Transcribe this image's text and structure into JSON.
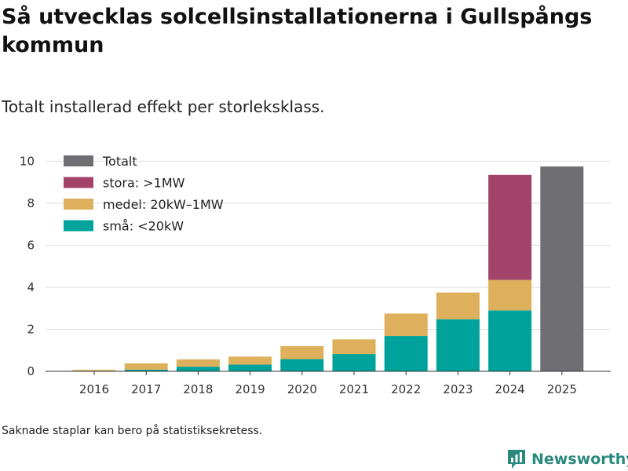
{
  "header": {
    "title": "Så utvecklas solcellsinstallationerna i Gullspångs kommun",
    "subtitle": "Totalt installerad effekt per storleksklass."
  },
  "footer": {
    "note": "Saknade staplar kan bero på statistiksekretess.",
    "brand": "Newsworthy"
  },
  "colors": {
    "sma": "#00a39b",
    "medel": "#deb05b",
    "stora": "#a4436a",
    "totalt": "#6f6f73",
    "grid": "#dddddd",
    "brand": "#2b8a7e"
  },
  "chart_data": {
    "type": "bar",
    "stacked": true,
    "title": "Så utvecklas solcellsinstallationerna i Gullspångs kommun",
    "subtitle": "Totalt installerad effekt per storleksklass.",
    "xlabel": "",
    "ylabel": "",
    "ylim": [
      0,
      10.5
    ],
    "yticks": [
      0,
      2,
      4,
      6,
      8,
      10
    ],
    "grid": true,
    "legend_position": "top-left",
    "categories": [
      "2016",
      "2017",
      "2018",
      "2019",
      "2020",
      "2021",
      "2022",
      "2023",
      "2024",
      "2025"
    ],
    "series": [
      {
        "name": "små: <20kW",
        "key": "sma",
        "values": [
          0.02,
          0.08,
          0.22,
          0.32,
          0.58,
          0.82,
          1.68,
          2.48,
          2.9,
          null
        ]
      },
      {
        "name": "medel: 20kW–1MW",
        "key": "medel",
        "values": [
          0.05,
          0.3,
          0.35,
          0.38,
          0.62,
          0.7,
          1.07,
          1.27,
          1.45,
          null
        ]
      },
      {
        "name": "stora: >1MW",
        "key": "stora",
        "values": [
          null,
          null,
          null,
          null,
          null,
          null,
          null,
          null,
          5.0,
          null
        ]
      },
      {
        "name": "Totalt",
        "key": "totalt",
        "values": [
          null,
          null,
          null,
          null,
          null,
          null,
          null,
          null,
          null,
          9.75
        ]
      }
    ],
    "legend": [
      "Totalt",
      "stora: >1MW",
      "medel: 20kW–1MW",
      "små: <20kW"
    ]
  }
}
